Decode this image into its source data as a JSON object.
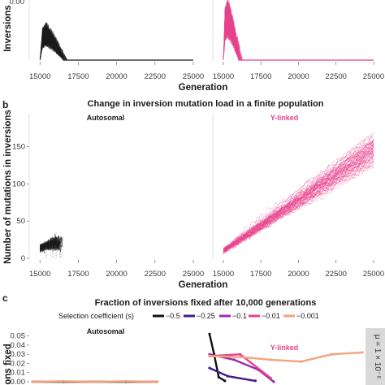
{
  "chart_data": [
    {
      "type": "line",
      "panel_label": "",
      "title": "",
      "xlabel": "Generation",
      "ylabel": "Inversions",
      "y_tick_labels": [
        "0.00"
      ],
      "x_ticks": [
        15000,
        17500,
        20000,
        22500,
        25000
      ],
      "x_tick_labels": [
        "15000",
        "17500",
        "20000",
        "22500",
        "25000"
      ],
      "xlim": [
        14300,
        25000
      ],
      "ylim": [
        0,
        0.6
      ],
      "facets": [
        {
          "name": "",
          "color": "#1a1a1a",
          "peak_x": 15400,
          "peak_y": 0.38,
          "end_x": 16500,
          "baseline_to": 25000
        },
        {
          "name": "",
          "color": "#e8418c",
          "peak_x": 15300,
          "peak_y": 0.62,
          "end_x": 16000,
          "baseline_to": 25000
        }
      ]
    },
    {
      "type": "line",
      "panel_label": "b",
      "title": "Change in inversion mutation load in a finite population",
      "xlabel": "Generation",
      "ylabel": "Number of mutations in inversions",
      "x_ticks": [
        15000,
        17500,
        20000,
        22500,
        25000
      ],
      "x_tick_labels": [
        "15000",
        "17500",
        "20000",
        "22500",
        "25000"
      ],
      "y_ticks": [
        0,
        50,
        100,
        150
      ],
      "y_tick_labels": [
        "0",
        "50",
        "100",
        "150"
      ],
      "xlim": [
        14300,
        25000
      ],
      "ylim": [
        0,
        190
      ],
      "facets": [
        {
          "name": "Autosomal",
          "color": "#1a1a1a",
          "x_start": 15000,
          "x_end": 16500,
          "y_start": 10,
          "y_end": 25
        },
        {
          "name": "Y-linked",
          "color": "#e8418c",
          "x_start": 15000,
          "x_end": 25000,
          "y_start": 10,
          "y_end": 145,
          "spread_end": 35
        }
      ]
    },
    {
      "type": "line",
      "panel_label": "c",
      "title": "Fraction of inversions fixed after 10,000 generations",
      "legend_title": "Selection coefficient (s)",
      "legend": [
        {
          "label": "−0.5",
          "color": "#111111"
        },
        {
          "label": "−0.25",
          "color": "#3b1d8c"
        },
        {
          "label": "−0.1",
          "color": "#9b2bb0"
        },
        {
          "label": "−0.01",
          "color": "#e8418c"
        },
        {
          "label": "−0.001",
          "color": "#f4a37a"
        }
      ],
      "ylabel": "ions fixed",
      "y_ticks": [
        0.05,
        0.04,
        0.03,
        0.02,
        0.01,
        0.0
      ],
      "y_tick_labels": [
        "0.05",
        "0.04",
        "0.03",
        "0.02",
        "0.01",
        "0.00"
      ],
      "ylim": [
        0,
        0.055
      ],
      "strip_label": "μ = 1 × 10⁻⁶",
      "facets": [
        {
          "name": "Autosomal",
          "color": "#1a1a1a"
        },
        {
          "name": "Y-linked",
          "color": "#e8418c"
        }
      ],
      "series": [
        {
          "name": "−0.5",
          "facet": "Autosomal",
          "x": [
            0,
            1,
            2,
            3,
            4
          ],
          "y": [
            0.0,
            0.0,
            0.0,
            0.0,
            0.0
          ]
        },
        {
          "name": "−0.001",
          "facet": "Autosomal",
          "x": [
            0,
            1,
            2,
            3,
            4
          ],
          "y": [
            0.0,
            0.0005,
            0.0,
            0.0005,
            0.0
          ]
        },
        {
          "name": "−0.5",
          "facet": "Y-linked",
          "x": [
            0,
            0.15,
            0.3,
            0.5
          ],
          "y": [
            0.052,
            0.03,
            0.005,
            0.001
          ]
        },
        {
          "name": "−0.25",
          "facet": "Y-linked",
          "x": [
            0,
            0.6,
            1.5
          ],
          "y": [
            0.015,
            0.006,
            0.001
          ]
        },
        {
          "name": "−0.1",
          "facet": "Y-linked",
          "x": [
            0,
            0.8,
            1.6,
            2.1
          ],
          "y": [
            0.03,
            0.024,
            0.013,
            0.0
          ]
        },
        {
          "name": "−0.01",
          "facet": "Y-linked",
          "x": [
            0,
            1.0,
            2.0
          ],
          "y": [
            0.028,
            0.03,
            0.004
          ]
        },
        {
          "name": "−0.001",
          "facet": "Y-linked",
          "x": [
            0,
            1,
            2,
            3,
            4,
            5
          ],
          "y": [
            0.028,
            0.027,
            0.024,
            0.022,
            0.03,
            0.032
          ]
        }
      ]
    }
  ]
}
